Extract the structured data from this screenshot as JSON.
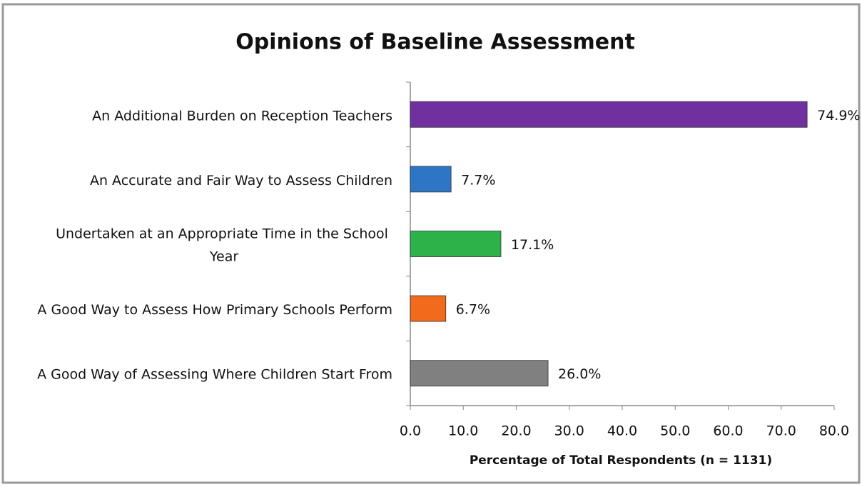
{
  "chart_data": {
    "type": "barh",
    "title": "Opinions of Baseline Assessment",
    "categories": [
      "An Additional Burden on Reception Teachers",
      "An Accurate and Fair Way to Assess Children",
      "Undertaken at an Appropriate Time in the School Year",
      "A Good Way to Assess How Primary Schools Perform",
      "A Good Way of Assessing Where Children Start From"
    ],
    "values": [
      74.9,
      7.7,
      17.1,
      6.7,
      26.0
    ],
    "value_labels": [
      "74.9%",
      "7.7%",
      "17.1%",
      "6.7%",
      "26.0%"
    ],
    "colors": [
      "#7030a0",
      "#2e75c6",
      "#2bb34a",
      "#f26b1d",
      "#808080"
    ],
    "xlabel": "Percentage of Total Respondents (n = 1131)",
    "xlim": [
      0,
      80
    ],
    "xticks": [
      {
        "value": 0,
        "label": "0.0"
      },
      {
        "value": 10,
        "label": "10.0"
      },
      {
        "value": 20,
        "label": "20.0"
      },
      {
        "value": 30,
        "label": "30.0"
      },
      {
        "value": 40,
        "label": "40.0"
      },
      {
        "value": 50,
        "label": "50.0"
      },
      {
        "value": 60,
        "label": "60.0"
      },
      {
        "value": 70,
        "label": "70.0"
      },
      {
        "value": 80,
        "label": "80.0"
      }
    ],
    "grid": false
  }
}
